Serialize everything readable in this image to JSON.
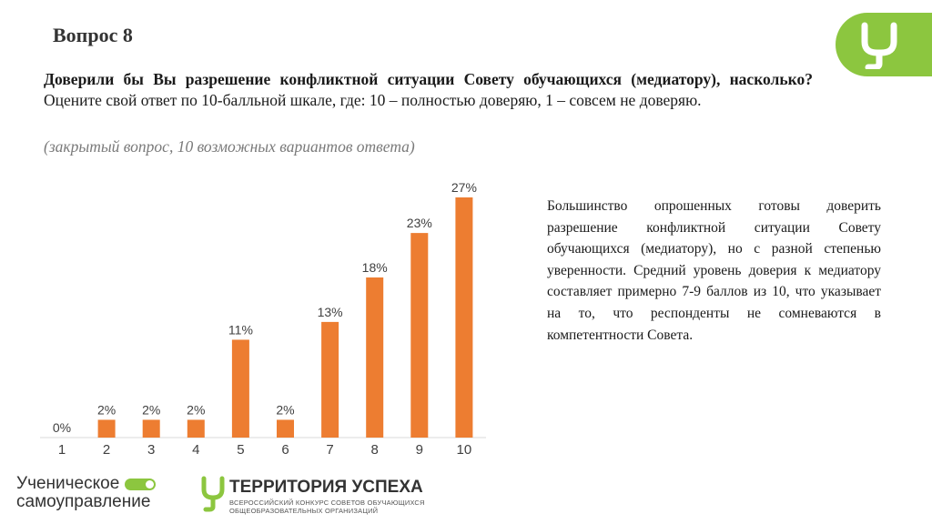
{
  "slide": {
    "title": "Вопрос 8",
    "question_bold": "Доверили бы Вы разрешение конфликтной ситуации Совету обучающихся (медиатору), насколько?",
    "question_rest": " Оцените свой ответ по 10-балльной шкале, где: 10 – полностью доверяю, 1 – совсем не доверяю.",
    "question_note": "(закрытый вопрос, 10 возможных вариантов ответа)",
    "summary": "Большинство опрошенных готовы доверить разрешение конфликтной ситуации Совету обучающихся (медиатору), но с разной степенью уверенности. Средний уровень доверия к медиатору составляет примерно 7-9 баллов из 10, что указывает на то, что респонденты не сомневаются в компетентности Совета."
  },
  "footer": {
    "left_line1": "Ученическое",
    "left_line2": "самоуправление",
    "right_title": "ТЕРРИТОРИЯ УСПЕХА",
    "right_sub1": "ВСЕРОССИЙСКИЙ КОНКУРС СОВЕТОВ ОБУЧАЮЩИХСЯ",
    "right_sub2": "ОБЩЕОБРАЗОВАТЕЛЬНЫХ ОРГАНИЗАЦИЙ"
  },
  "colors": {
    "bar": "#ed7d31",
    "brand_green": "#8cc63f"
  },
  "chart_data": {
    "type": "bar",
    "categories": [
      "1",
      "2",
      "3",
      "4",
      "5",
      "6",
      "7",
      "8",
      "9",
      "10"
    ],
    "values": [
      0,
      2,
      2,
      2,
      11,
      2,
      13,
      18,
      23,
      27
    ],
    "value_labels": [
      "0%",
      "2%",
      "2%",
      "2%",
      "11%",
      "2%",
      "13%",
      "18%",
      "23%",
      "27%"
    ],
    "unit": "%",
    "ylim": [
      0,
      27
    ],
    "grid": false,
    "legend": "none"
  }
}
